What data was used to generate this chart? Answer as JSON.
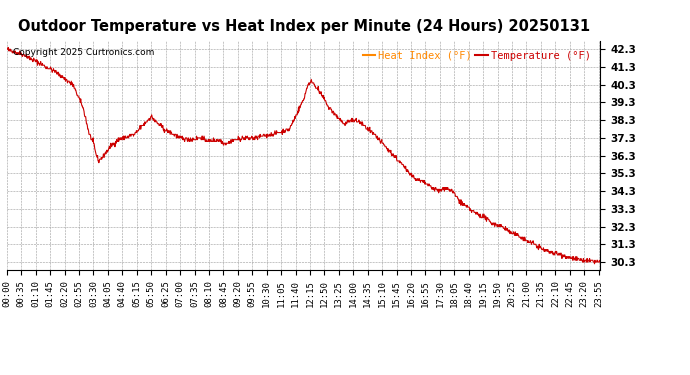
{
  "title": "Outdoor Temperature vs Heat Index per Minute (24 Hours) 20250131",
  "copyright": "Copyright 2025 Curtronics.com",
  "legend_heat_index": "Heat Index (°F)",
  "legend_temperature": "Temperature (°F)",
  "legend_heat_color": "#ff8800",
  "legend_temp_color": "#cc0000",
  "line_color": "#cc0000",
  "background_color": "#ffffff",
  "grid_color": "#999999",
  "title_color": "#000000",
  "copyright_color": "#000000",
  "ylim_min": 29.85,
  "ylim_max": 42.75,
  "ytick_start": 30.3,
  "ytick_end": 42.3,
  "ytick_step": 1.0,
  "x_tick_interval": 35,
  "tick_labels_fontsize": 6.5,
  "title_fontsize": 10.5,
  "copyright_fontsize": 6.5,
  "legend_fontsize": 7.5,
  "waypoints": [
    [
      0,
      42.3
    ],
    [
      40,
      42.0
    ],
    [
      80,
      41.5
    ],
    [
      120,
      41.0
    ],
    [
      160,
      40.3
    ],
    [
      185,
      39.0
    ],
    [
      200,
      37.5
    ],
    [
      210,
      37.0
    ],
    [
      215,
      36.5
    ],
    [
      222,
      36.0
    ],
    [
      235,
      36.3
    ],
    [
      250,
      36.8
    ],
    [
      270,
      37.2
    ],
    [
      310,
      37.5
    ],
    [
      350,
      38.5
    ],
    [
      380,
      37.8
    ],
    [
      420,
      37.3
    ],
    [
      450,
      37.2
    ],
    [
      470,
      37.3
    ],
    [
      490,
      37.1
    ],
    [
      510,
      37.2
    ],
    [
      530,
      37.0
    ],
    [
      555,
      37.2
    ],
    [
      575,
      37.3
    ],
    [
      600,
      37.3
    ],
    [
      620,
      37.4
    ],
    [
      640,
      37.5
    ],
    [
      660,
      37.6
    ],
    [
      685,
      37.8
    ],
    [
      700,
      38.5
    ],
    [
      720,
      39.5
    ],
    [
      730,
      40.3
    ],
    [
      740,
      40.5
    ],
    [
      750,
      40.2
    ],
    [
      760,
      39.8
    ],
    [
      770,
      39.5
    ],
    [
      780,
      39.0
    ],
    [
      790,
      38.8
    ],
    [
      800,
      38.5
    ],
    [
      810,
      38.3
    ],
    [
      820,
      38.0
    ],
    [
      830,
      38.3
    ],
    [
      840,
      38.3
    ],
    [
      855,
      38.2
    ],
    [
      865,
      38.0
    ],
    [
      875,
      37.8
    ],
    [
      890,
      37.5
    ],
    [
      910,
      37.0
    ],
    [
      930,
      36.5
    ],
    [
      950,
      36.0
    ],
    [
      970,
      35.5
    ],
    [
      990,
      35.0
    ],
    [
      1010,
      34.8
    ],
    [
      1030,
      34.5
    ],
    [
      1050,
      34.3
    ],
    [
      1055,
      34.4
    ],
    [
      1065,
      34.5
    ],
    [
      1080,
      34.3
    ],
    [
      1090,
      34.0
    ],
    [
      1095,
      33.8
    ],
    [
      1110,
      33.5
    ],
    [
      1120,
      33.3
    ],
    [
      1140,
      33.0
    ],
    [
      1160,
      32.8
    ],
    [
      1175,
      32.5
    ],
    [
      1200,
      32.3
    ],
    [
      1220,
      32.0
    ],
    [
      1240,
      31.8
    ],
    [
      1260,
      31.5
    ],
    [
      1280,
      31.3
    ],
    [
      1300,
      31.0
    ],
    [
      1330,
      30.8
    ],
    [
      1360,
      30.6
    ],
    [
      1390,
      30.4
    ],
    [
      1439,
      30.3
    ]
  ]
}
